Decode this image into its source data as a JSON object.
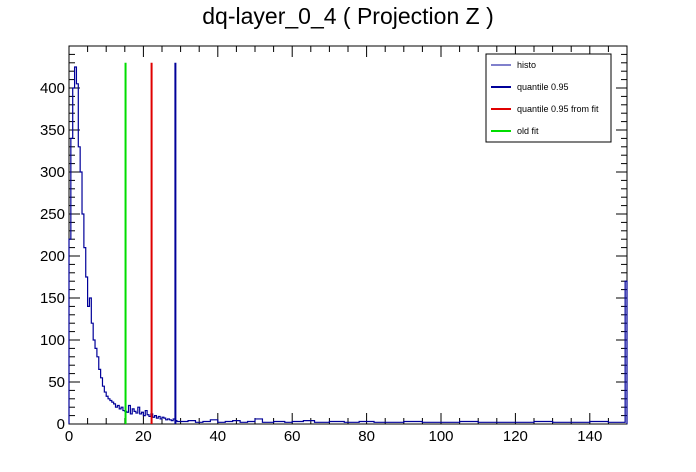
{
  "chart_data": {
    "type": "line",
    "title": "dq-layer_0_4 ( Projection Z )",
    "xlabel": "",
    "ylabel": "",
    "xlim": [
      0,
      150
    ],
    "ylim": [
      0,
      450
    ],
    "x_ticks": [
      0,
      20,
      40,
      60,
      80,
      100,
      120,
      140
    ],
    "y_ticks": [
      0,
      50,
      100,
      150,
      200,
      250,
      300,
      350,
      400
    ],
    "grid": false,
    "legend_position": "top-right",
    "legend": [
      {
        "label": "histo",
        "color": "#000099",
        "style": "thin"
      },
      {
        "label": "quantile 0.95",
        "color": "#000099",
        "style": "thick"
      },
      {
        "label": "quantile 0.95 from fit",
        "color": "#e00000",
        "style": "thick"
      },
      {
        "label": "old fit",
        "color": "#00dd00",
        "style": "thick"
      }
    ],
    "series": [
      {
        "name": "histo",
        "color": "#000099",
        "x": [
          0.5,
          1.0,
          1.5,
          2.0,
          2.5,
          3.0,
          3.5,
          4.0,
          4.5,
          5.0,
          5.5,
          6.0,
          6.5,
          7.0,
          7.5,
          8.0,
          8.5,
          9.0,
          9.5,
          10.0,
          10.5,
          11.0,
          11.5,
          12.0,
          12.5,
          13.0,
          13.5,
          14.0,
          14.5,
          15.0,
          15.5,
          16.0,
          16.5,
          17.0,
          17.5,
          18.0,
          18.5,
          19.0,
          19.5,
          20.0,
          20.5,
          21.0,
          21.5,
          22.0,
          22.5,
          23.0,
          23.5,
          24.0,
          24.5,
          25.0,
          25.5,
          26.0,
          26.5,
          27.0,
          27.5,
          28.0,
          28.5,
          29.0,
          30.0,
          32.0,
          34.0,
          36.0,
          38.0,
          40.0,
          42.0,
          44.0,
          46.0,
          48.0,
          50.0,
          52.0,
          55.0,
          58.0,
          60.0,
          63.0,
          66.0,
          70.0,
          74.0,
          78.0,
          82.0,
          86.0,
          90.0,
          95.0,
          100.0,
          105.0,
          110.0,
          115.0,
          120.0,
          125.0,
          130.0,
          135.0,
          140.0,
          145.0,
          149.5,
          150.0
        ],
        "values": [
          220,
          340,
          400,
          425,
          405,
          330,
          300,
          250,
          210,
          175,
          140,
          150,
          120,
          100,
          90,
          80,
          65,
          55,
          45,
          38,
          33,
          30,
          28,
          26,
          24,
          20,
          22,
          18,
          20,
          16,
          15,
          14,
          22,
          12,
          18,
          15,
          13,
          20,
          12,
          14,
          10,
          16,
          11,
          9,
          12,
          8,
          10,
          7,
          9,
          6,
          8,
          7,
          5,
          6,
          5,
          4,
          6,
          4,
          3,
          3,
          4,
          2,
          3,
          5,
          2,
          3,
          4,
          2,
          3,
          6,
          2,
          3,
          2,
          3,
          4,
          2,
          3,
          2,
          3,
          2,
          2,
          3,
          2,
          2,
          3,
          2,
          2,
          2,
          3,
          2,
          2,
          3,
          2,
          170
        ]
      }
    ],
    "vertical_lines": [
      {
        "name": "quantile 0.95",
        "x": 28.6,
        "y_top": 430,
        "color": "#000099"
      },
      {
        "name": "quantile 0.95 from fit",
        "x": 22.2,
        "y_top": 430,
        "color": "#e00000"
      },
      {
        "name": "old fit",
        "x": 15.2,
        "y_top": 430,
        "color": "#00dd00"
      }
    ]
  }
}
